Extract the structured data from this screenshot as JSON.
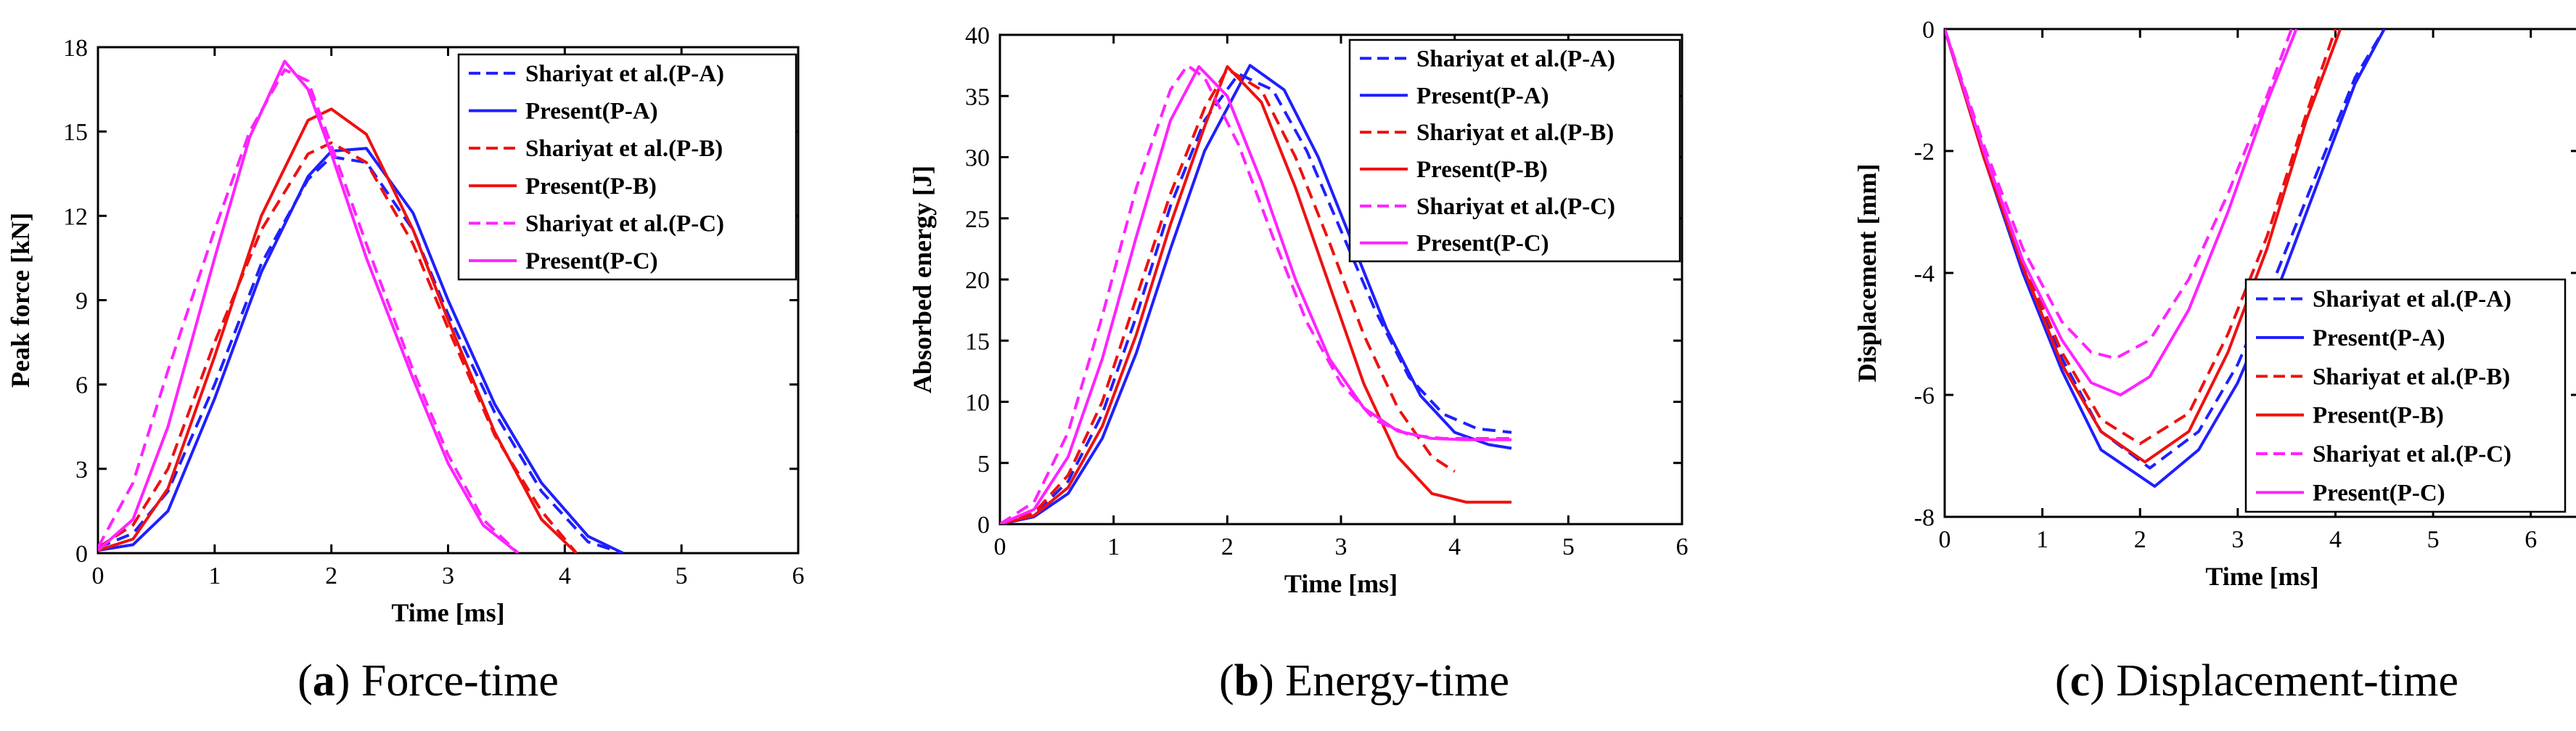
{
  "colors": {
    "blue": "#1f1fff",
    "red": "#ee1111",
    "magenta": "#ff22ff",
    "axis": "#000000"
  },
  "chart_data": [
    {
      "type": "line",
      "caption_letter": "a",
      "caption_text": "Force-time",
      "xlabel": "Time [ms]",
      "ylabel": "Peak force [kN]",
      "xlim": [
        0,
        6
      ],
      "ylim": [
        0,
        18
      ],
      "xticks": [
        0,
        1,
        2,
        3,
        4,
        5,
        6
      ],
      "yticks": [
        0,
        3,
        6,
        9,
        12,
        15,
        18
      ],
      "legend_location": "top-right",
      "series": [
        {
          "name": "Shariyat et al.(P-A)",
          "color": "#1f1fff",
          "dash": true,
          "x": [
            0,
            0.3,
            0.6,
            1.0,
            1.4,
            1.8,
            2.0,
            2.3,
            2.7,
            3.0,
            3.4,
            3.8,
            4.2,
            4.5
          ],
          "y": [
            0.2,
            0.7,
            2.2,
            6.0,
            10.3,
            13.3,
            14.1,
            13.9,
            11.5,
            8.5,
            5.0,
            2.2,
            0.4,
            0
          ]
        },
        {
          "name": "Present(P-A)",
          "color": "#1f1fff",
          "dash": false,
          "x": [
            0,
            0.3,
            0.6,
            1.0,
            1.4,
            1.8,
            2.0,
            2.3,
            2.7,
            3.0,
            3.4,
            3.8,
            4.2,
            4.5
          ],
          "y": [
            0.1,
            0.3,
            1.5,
            5.5,
            10.0,
            13.4,
            14.3,
            14.4,
            12.1,
            9.0,
            5.3,
            2.5,
            0.6,
            0
          ]
        },
        {
          "name": "Shariyat et al.(P-B)",
          "color": "#ee1111",
          "dash": true,
          "x": [
            0,
            0.3,
            0.6,
            1.0,
            1.4,
            1.8,
            2.0,
            2.3,
            2.7,
            3.0,
            3.4,
            3.8,
            4.1
          ],
          "y": [
            0.2,
            1.0,
            3.0,
            7.5,
            11.5,
            14.2,
            14.6,
            13.9,
            11.0,
            8.0,
            4.2,
            1.5,
            0
          ]
        },
        {
          "name": "Present(P-B)",
          "color": "#ee1111",
          "dash": false,
          "x": [
            0,
            0.3,
            0.6,
            1.0,
            1.4,
            1.8,
            2.0,
            2.3,
            2.7,
            3.0,
            3.4,
            3.8,
            4.1
          ],
          "y": [
            0.1,
            0.5,
            2.3,
            7.0,
            12.0,
            15.4,
            15.8,
            14.9,
            11.5,
            8.3,
            4.3,
            1.2,
            0
          ]
        },
        {
          "name": "Shariyat et al.(P-C)",
          "color": "#ff22ff",
          "dash": true,
          "x": [
            0,
            0.3,
            0.6,
            1.0,
            1.3,
            1.6,
            1.8,
            2.0,
            2.3,
            2.7,
            3.0,
            3.3,
            3.6
          ],
          "y": [
            0.2,
            2.5,
            6.5,
            11.5,
            15.0,
            17.2,
            16.8,
            14.5,
            11.0,
            6.5,
            3.5,
            1.2,
            0
          ]
        },
        {
          "name": "Present(P-C)",
          "color": "#ff22ff",
          "dash": false,
          "x": [
            0,
            0.3,
            0.6,
            1.0,
            1.3,
            1.6,
            1.8,
            2.0,
            2.3,
            2.7,
            3.0,
            3.3,
            3.6
          ],
          "y": [
            0.1,
            1.2,
            4.5,
            10.5,
            14.8,
            17.5,
            16.5,
            14.2,
            10.5,
            6.2,
            3.2,
            1.0,
            0
          ]
        }
      ]
    },
    {
      "type": "line",
      "caption_letter": "b",
      "caption_text": "Energy-time",
      "xlabel": "Time [ms]",
      "ylabel": "Absorbed energy [J]",
      "xlim": [
        0,
        6
      ],
      "ylim": [
        0,
        40
      ],
      "xticks": [
        0,
        1,
        2,
        3,
        4,
        5,
        6
      ],
      "yticks": [
        0,
        5,
        10,
        15,
        20,
        25,
        30,
        35,
        40
      ],
      "legend_location": "top-right",
      "series": [
        {
          "name": "Shariyat et al.(P-A)",
          "color": "#1f1fff",
          "dash": true,
          "x": [
            0,
            0.3,
            0.6,
            0.9,
            1.2,
            1.5,
            1.8,
            2.1,
            2.4,
            2.7,
            3.0,
            3.3,
            3.6,
            3.9,
            4.2,
            4.5
          ],
          "y": [
            0,
            0.8,
            3.5,
            9.0,
            17.0,
            26.0,
            33.0,
            36.8,
            35.5,
            30.5,
            24.0,
            17.5,
            12.0,
            9.0,
            7.8,
            7.5
          ]
        },
        {
          "name": "Present(P-A)",
          "color": "#1f1fff",
          "dash": false,
          "x": [
            0,
            0.3,
            0.6,
            0.9,
            1.2,
            1.5,
            1.8,
            2.2,
            2.5,
            2.8,
            3.1,
            3.4,
            3.7,
            4.0,
            4.3,
            4.5
          ],
          "y": [
            0,
            0.6,
            2.5,
            7.0,
            14.0,
            22.5,
            30.5,
            37.5,
            35.5,
            30.0,
            23.0,
            16.0,
            10.5,
            7.5,
            6.5,
            6.2
          ]
        },
        {
          "name": "Shariyat et al.(P-B)",
          "color": "#ee1111",
          "dash": true,
          "x": [
            0,
            0.3,
            0.6,
            0.9,
            1.2,
            1.5,
            1.8,
            2.0,
            2.3,
            2.6,
            2.9,
            3.2,
            3.5,
            3.8,
            4.0
          ],
          "y": [
            0,
            0.9,
            4.0,
            10.0,
            18.5,
            27.0,
            34.0,
            37.2,
            35.5,
            30.0,
            23.0,
            15.5,
            9.5,
            5.5,
            4.3
          ]
        },
        {
          "name": "Present(P-B)",
          "color": "#ee1111",
          "dash": false,
          "x": [
            0,
            0.3,
            0.6,
            0.9,
            1.2,
            1.5,
            1.8,
            2.0,
            2.3,
            2.6,
            2.9,
            3.2,
            3.5,
            3.8,
            4.1,
            4.5
          ],
          "y": [
            0,
            0.7,
            3.0,
            8.0,
            15.5,
            24.5,
            32.5,
            37.4,
            34.5,
            27.5,
            19.5,
            11.5,
            5.5,
            2.5,
            1.8,
            1.8
          ]
        },
        {
          "name": "Shariyat et al.(P-C)",
          "color": "#ff22ff",
          "dash": true,
          "x": [
            0,
            0.3,
            0.6,
            0.9,
            1.2,
            1.5,
            1.65,
            1.8,
            2.1,
            2.4,
            2.7,
            3.0,
            3.3,
            3.6,
            3.9,
            4.2,
            4.5
          ],
          "y": [
            0,
            1.8,
            7.5,
            17.0,
            27.5,
            35.5,
            37.5,
            36.5,
            31.0,
            23.5,
            16.5,
            11.5,
            8.5,
            7.3,
            7.0,
            7.0,
            7.0
          ]
        },
        {
          "name": "Present(P-C)",
          "color": "#ff22ff",
          "dash": false,
          "x": [
            0,
            0.3,
            0.6,
            0.9,
            1.2,
            1.5,
            1.75,
            2.0,
            2.3,
            2.6,
            2.9,
            3.2,
            3.5,
            3.8,
            4.1,
            4.5
          ],
          "y": [
            0,
            1.2,
            5.5,
            13.5,
            23.5,
            33.0,
            37.4,
            35.0,
            28.0,
            20.0,
            13.5,
            9.5,
            7.6,
            7.0,
            6.9,
            6.9
          ]
        }
      ]
    },
    {
      "type": "line",
      "caption_letter": "c",
      "caption_text": "Displacement-time",
      "xlabel": "Time [ms]",
      "ylabel": "Displacement [mm]",
      "xlim": [
        0,
        6.5
      ],
      "ylim": [
        -8,
        0
      ],
      "xticks": [
        0,
        1,
        2,
        3,
        4,
        5,
        6
      ],
      "yticks": [
        -8,
        -6,
        -4,
        -2,
        0
      ],
      "legend_location": "bottom-right",
      "series": [
        {
          "name": "Shariyat et al.(P-A)",
          "color": "#1f1fff",
          "dash": true,
          "x": [
            0,
            0.4,
            0.8,
            1.2,
            1.6,
            2.1,
            2.6,
            3.0,
            3.4,
            3.8,
            4.2,
            4.5
          ],
          "y": [
            0,
            -2.0,
            -3.8,
            -5.4,
            -6.6,
            -7.2,
            -6.6,
            -5.5,
            -4.0,
            -2.4,
            -0.8,
            0
          ]
        },
        {
          "name": "Present(P-A)",
          "color": "#1f1fff",
          "dash": false,
          "x": [
            0,
            0.4,
            0.8,
            1.2,
            1.6,
            2.15,
            2.6,
            3.0,
            3.4,
            3.8,
            4.2,
            4.5
          ],
          "y": [
            0,
            -2.1,
            -4.0,
            -5.6,
            -6.9,
            -7.5,
            -6.9,
            -5.8,
            -4.3,
            -2.6,
            -0.9,
            0
          ]
        },
        {
          "name": "Shariyat et al.(P-B)",
          "color": "#ee1111",
          "dash": true,
          "x": [
            0,
            0.4,
            0.8,
            1.2,
            1.6,
            2.0,
            2.5,
            2.9,
            3.3,
            3.7,
            4.0
          ],
          "y": [
            0,
            -2.0,
            -3.8,
            -5.3,
            -6.4,
            -6.8,
            -6.3,
            -5.0,
            -3.4,
            -1.4,
            0
          ]
        },
        {
          "name": "Present(P-B)",
          "color": "#ee1111",
          "dash": false,
          "x": [
            0,
            0.4,
            0.8,
            1.2,
            1.6,
            2.05,
            2.5,
            2.9,
            3.3,
            3.7,
            4.05
          ],
          "y": [
            0,
            -2.1,
            -3.9,
            -5.5,
            -6.6,
            -7.1,
            -6.6,
            -5.3,
            -3.6,
            -1.5,
            0
          ]
        },
        {
          "name": "Shariyat et al.(P-C)",
          "color": "#ff22ff",
          "dash": true,
          "x": [
            0,
            0.4,
            0.8,
            1.2,
            1.5,
            1.75,
            2.1,
            2.5,
            2.9,
            3.3,
            3.55
          ],
          "y": [
            0,
            -1.9,
            -3.6,
            -4.8,
            -5.3,
            -5.4,
            -5.1,
            -4.1,
            -2.7,
            -1.1,
            0
          ]
        },
        {
          "name": "Present(P-C)",
          "color": "#ff22ff",
          "dash": false,
          "x": [
            0,
            0.4,
            0.8,
            1.2,
            1.5,
            1.8,
            2.1,
            2.5,
            2.9,
            3.3,
            3.6
          ],
          "y": [
            0,
            -2.0,
            -3.8,
            -5.1,
            -5.8,
            -6.0,
            -5.7,
            -4.6,
            -3.0,
            -1.2,
            0
          ]
        }
      ]
    }
  ]
}
